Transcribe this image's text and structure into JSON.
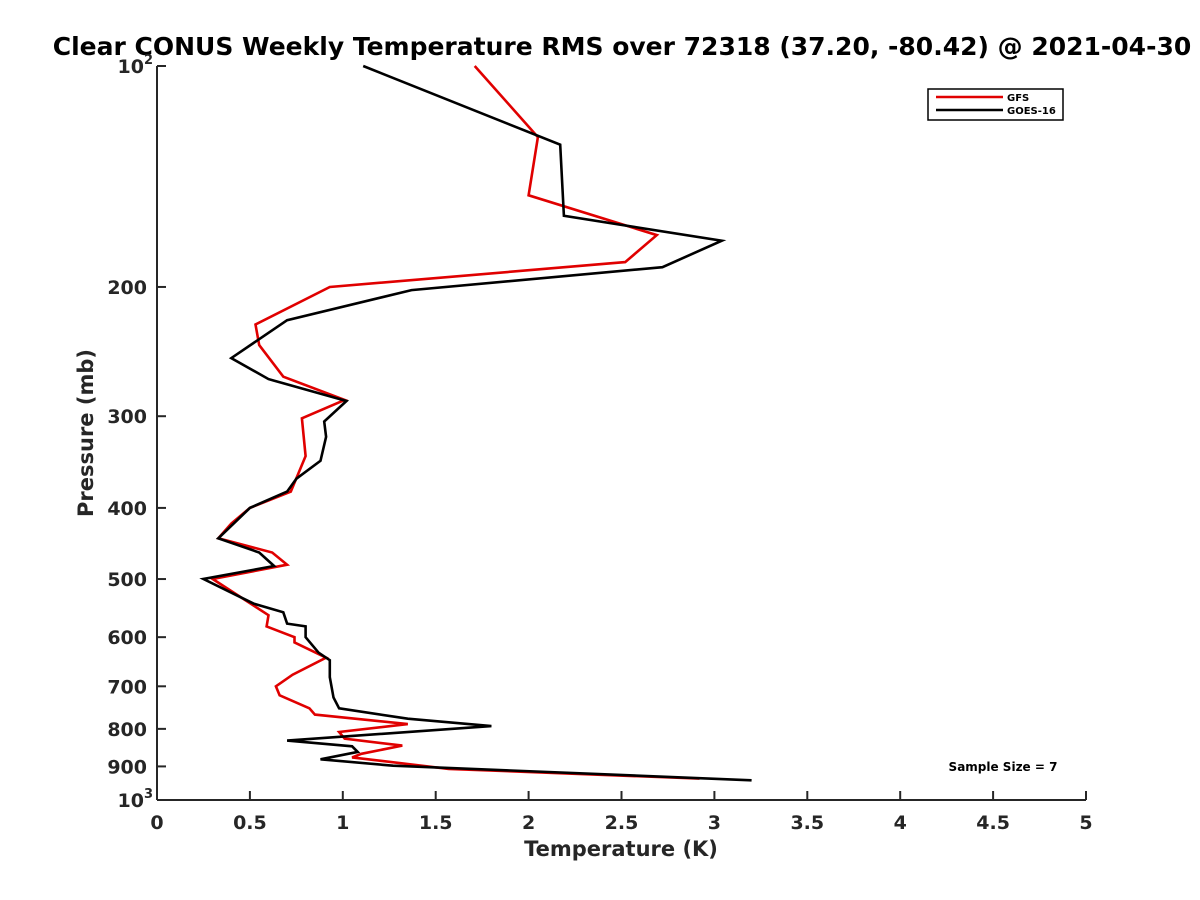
{
  "chart_data": {
    "type": "line",
    "title": "Clear CONUS Weekly Temperature RMS over 72318 (37.20, -80.42) @ 2021-04-30",
    "xlabel": "Temperature (K)",
    "ylabel": "Pressure (mb)",
    "xlim": [
      0,
      5
    ],
    "ylim": [
      100,
      1000
    ],
    "y_scale": "log",
    "y_reversed": true,
    "x_ticks": [
      {
        "value": 0,
        "label": "0"
      },
      {
        "value": 0.5,
        "label": "0.5"
      },
      {
        "value": 1,
        "label": "1"
      },
      {
        "value": 1.5,
        "label": "1.5"
      },
      {
        "value": 2,
        "label": "2"
      },
      {
        "value": 2.5,
        "label": "2.5"
      },
      {
        "value": 3,
        "label": "3"
      },
      {
        "value": 3.5,
        "label": "3.5"
      },
      {
        "value": 4,
        "label": "4"
      },
      {
        "value": 4.5,
        "label": "4.5"
      },
      {
        "value": 5,
        "label": "5"
      }
    ],
    "y_ticks": [
      {
        "value": 100,
        "label": "10",
        "exp": "2"
      },
      {
        "value": 200,
        "label": "200"
      },
      {
        "value": 300,
        "label": "300"
      },
      {
        "value": 400,
        "label": "400"
      },
      {
        "value": 500,
        "label": "500"
      },
      {
        "value": 600,
        "label": "600"
      },
      {
        "value": 700,
        "label": "700"
      },
      {
        "value": 800,
        "label": "800"
      },
      {
        "value": 900,
        "label": "900"
      },
      {
        "value": 1000,
        "label": "10",
        "exp": "3"
      }
    ],
    "grid": false,
    "legend_position": "top-right",
    "annotation": "Sample Size = 7",
    "series": [
      {
        "name": "GFS",
        "color": "#e00000",
        "points": [
          [
            1.71,
            100
          ],
          [
            2.05,
            125
          ],
          [
            2.0,
            150
          ],
          [
            2.69,
            170
          ],
          [
            2.52,
            185
          ],
          [
            0.93,
            200
          ],
          [
            0.53,
            225
          ],
          [
            0.55,
            240
          ],
          [
            0.68,
            265
          ],
          [
            1.01,
            285
          ],
          [
            0.78,
            302
          ],
          [
            0.8,
            340
          ],
          [
            0.72,
            380
          ],
          [
            0.5,
            400
          ],
          [
            0.4,
            420
          ],
          [
            0.33,
            440
          ],
          [
            0.62,
            460
          ],
          [
            0.7,
            478
          ],
          [
            0.3,
            500
          ],
          [
            0.6,
            560
          ],
          [
            0.59,
            580
          ],
          [
            0.74,
            600
          ],
          [
            0.74,
            610
          ],
          [
            0.91,
            640
          ],
          [
            0.73,
            675
          ],
          [
            0.64,
            700
          ],
          [
            0.66,
            720
          ],
          [
            0.82,
            750
          ],
          [
            0.85,
            765
          ],
          [
            1.35,
            788
          ],
          [
            0.98,
            808
          ],
          [
            1.01,
            825
          ],
          [
            1.32,
            843
          ],
          [
            1.1,
            865
          ],
          [
            1.05,
            875
          ],
          [
            1.57,
            907
          ],
          [
            2.92,
            935
          ]
        ]
      },
      {
        "name": "GOES-16",
        "color": "#000000",
        "points": [
          [
            1.11,
            100
          ],
          [
            2.17,
            128
          ],
          [
            2.19,
            160
          ],
          [
            3.04,
            173
          ],
          [
            2.72,
            188
          ],
          [
            1.37,
            202
          ],
          [
            0.7,
            222
          ],
          [
            0.4,
            250
          ],
          [
            0.6,
            267
          ],
          [
            1.02,
            286
          ],
          [
            0.9,
            305
          ],
          [
            0.91,
            320
          ],
          [
            0.88,
            345
          ],
          [
            0.75,
            365
          ],
          [
            0.7,
            380
          ],
          [
            0.5,
            400
          ],
          [
            0.33,
            440
          ],
          [
            0.55,
            460
          ],
          [
            0.63,
            480
          ],
          [
            0.25,
            500
          ],
          [
            0.52,
            540
          ],
          [
            0.68,
            555
          ],
          [
            0.7,
            575
          ],
          [
            0.8,
            580
          ],
          [
            0.8,
            600
          ],
          [
            0.87,
            630
          ],
          [
            0.93,
            645
          ],
          [
            0.93,
            680
          ],
          [
            0.95,
            725
          ],
          [
            0.98,
            750
          ],
          [
            1.35,
            775
          ],
          [
            1.8,
            793
          ],
          [
            0.7,
            830
          ],
          [
            1.05,
            845
          ],
          [
            1.08,
            860
          ],
          [
            0.88,
            880
          ],
          [
            1.27,
            898
          ],
          [
            3.2,
            940
          ]
        ]
      }
    ]
  }
}
